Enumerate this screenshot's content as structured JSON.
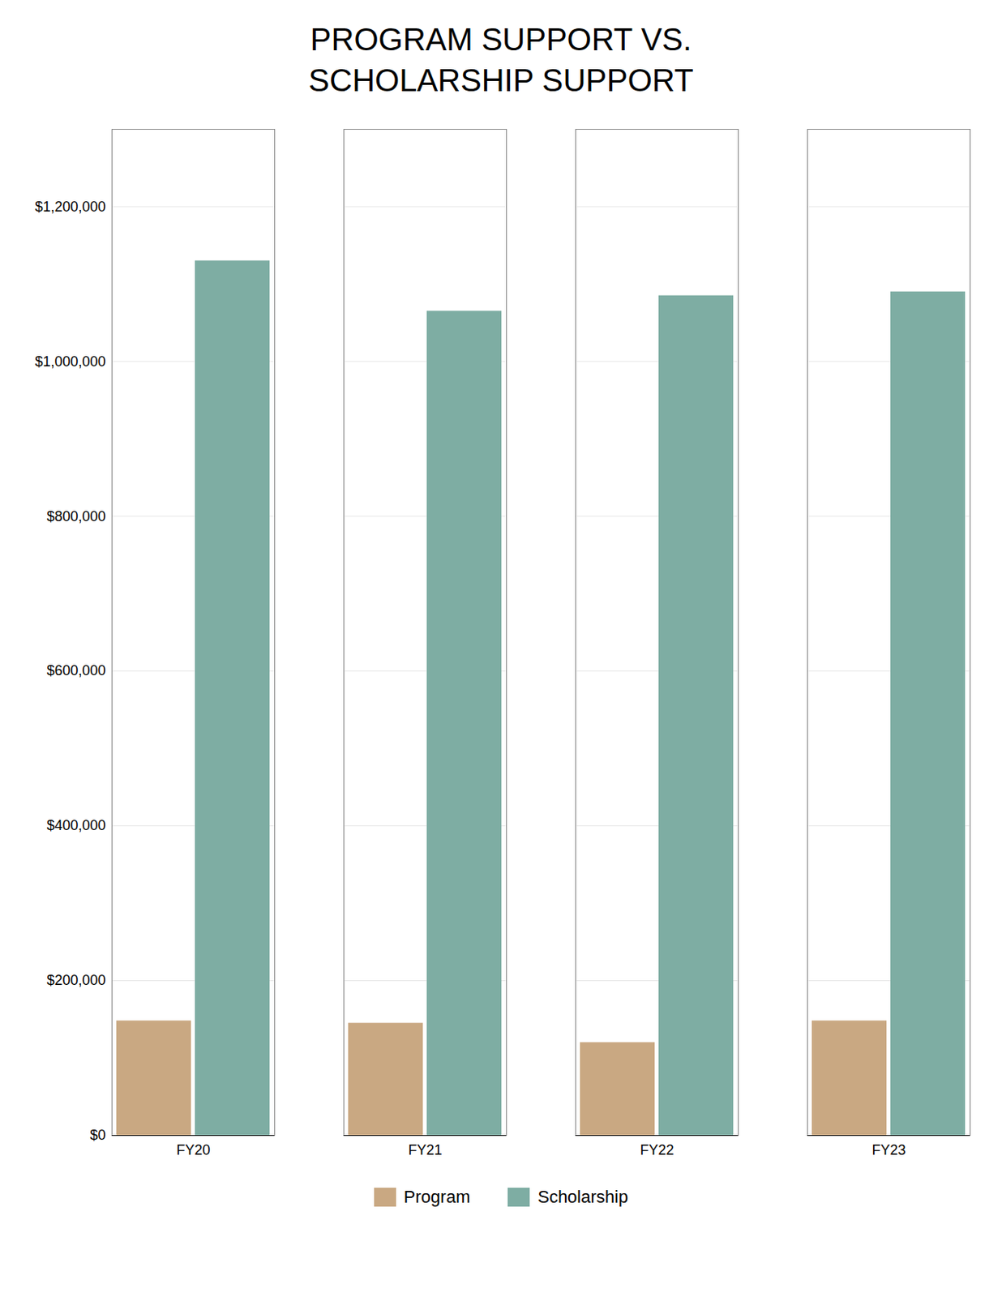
{
  "chart_data": {
    "type": "bar",
    "title": "PROGRAM SUPPORT VS.\nSCHOLARSHIP SUPPORT",
    "categories": [
      "FY20",
      "FY21",
      "FY22",
      "FY23"
    ],
    "series": [
      {
        "name": "Program",
        "color": "#C9A882",
        "values": [
          148000,
          145000,
          120000,
          148000
        ]
      },
      {
        "name": "Scholarship",
        "color": "#7EADA3",
        "values": [
          1130000,
          1065000,
          1085000,
          1090000
        ]
      }
    ],
    "ylim": [
      0,
      1300000
    ],
    "yticks": [
      {
        "value": 0,
        "label": "$0"
      },
      {
        "value": 200000,
        "label": "$200,000"
      },
      {
        "value": 400000,
        "label": "$400,000"
      },
      {
        "value": 600000,
        "label": "$600,000"
      },
      {
        "value": 800000,
        "label": "$800,000"
      },
      {
        "value": 1000000,
        "label": "$1,000,000"
      },
      {
        "value": 1200000,
        "label": "$1,200,000"
      }
    ],
    "grid": true,
    "legend": "bottom"
  }
}
